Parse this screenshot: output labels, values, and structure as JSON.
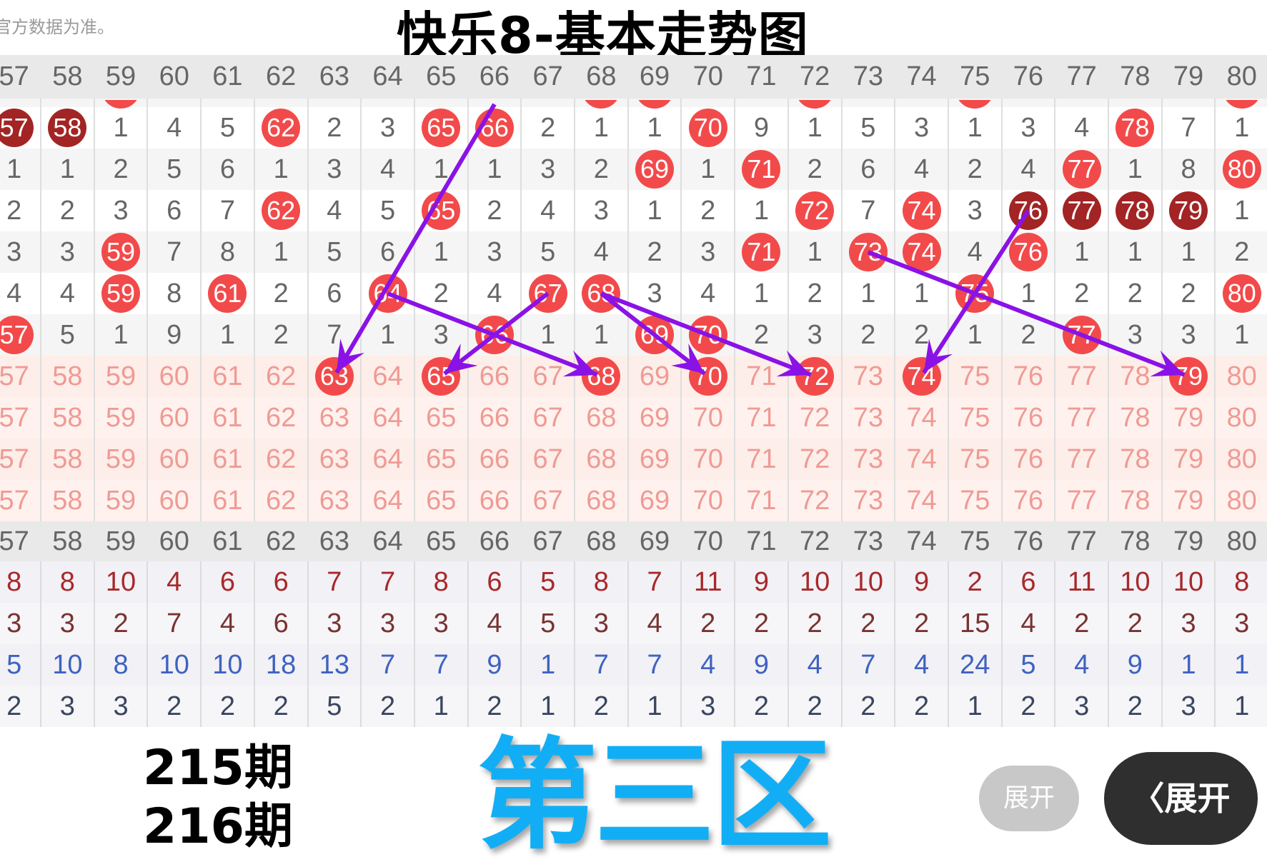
{
  "header_note": "官方数据为准。",
  "title": "快乐8-基本走势图",
  "columns": [
    "57",
    "58",
    "59",
    "60",
    "61",
    "62",
    "63",
    "64",
    "65",
    "66",
    "67",
    "68",
    "69",
    "70",
    "71",
    "72",
    "73",
    "74",
    "75",
    "76",
    "77",
    "78",
    "79",
    "80"
  ],
  "colors": {
    "hit": "#f24a4a",
    "dark_hit": "#a32424",
    "arrow": "#8a12e6",
    "zone_label": "#12aef5",
    "pink_text": "#f09a95"
  },
  "partial_row_hits": [
    "59",
    "68",
    "69",
    "72",
    "75",
    "80"
  ],
  "rows": [
    {
      "cells": [
        "57",
        "58",
        "1",
        "4",
        "5",
        "62",
        "2",
        "3",
        "65",
        "66",
        "2",
        "1",
        "1",
        "70",
        "9",
        "1",
        "5",
        "3",
        "1",
        "3",
        "4",
        "78",
        "7",
        "1"
      ],
      "hits": [
        "62",
        "65",
        "66",
        "70",
        "78"
      ],
      "dark": [
        "57",
        "58"
      ]
    },
    {
      "cells": [
        "1",
        "1",
        "2",
        "5",
        "6",
        "1",
        "3",
        "4",
        "1",
        "1",
        "3",
        "2",
        "69",
        "1",
        "71",
        "2",
        "6",
        "4",
        "2",
        "4",
        "77",
        "1",
        "8",
        "80"
      ],
      "hits": [
        "69",
        "71",
        "77",
        "80"
      ],
      "dark": []
    },
    {
      "cells": [
        "2",
        "2",
        "3",
        "6",
        "7",
        "62",
        "4",
        "5",
        "65",
        "2",
        "4",
        "3",
        "1",
        "2",
        "1",
        "72",
        "7",
        "74",
        "3",
        "76",
        "77",
        "78",
        "79",
        "1"
      ],
      "hits": [
        "62",
        "65",
        "72",
        "74"
      ],
      "dark": [
        "76",
        "77",
        "78",
        "79"
      ]
    },
    {
      "cells": [
        "3",
        "3",
        "59",
        "7",
        "8",
        "1",
        "5",
        "6",
        "1",
        "3",
        "5",
        "4",
        "2",
        "3",
        "71",
        "1",
        "73",
        "74",
        "4",
        "76",
        "1",
        "1",
        "1",
        "2"
      ],
      "hits": [
        "59",
        "71",
        "73",
        "74",
        "76"
      ],
      "dark": []
    },
    {
      "cells": [
        "4",
        "4",
        "59",
        "8",
        "61",
        "2",
        "6",
        "64",
        "2",
        "4",
        "67",
        "68",
        "3",
        "4",
        "1",
        "2",
        "1",
        "1",
        "75",
        "1",
        "2",
        "2",
        "2",
        "80"
      ],
      "hits": [
        "59",
        "61",
        "64",
        "67",
        "68",
        "75",
        "80"
      ],
      "dark": []
    },
    {
      "cells": [
        "57",
        "5",
        "1",
        "9",
        "1",
        "2",
        "7",
        "1",
        "3",
        "66",
        "1",
        "1",
        "69",
        "70",
        "2",
        "3",
        "2",
        "2",
        "1",
        "2",
        "77",
        "3",
        "3",
        "1"
      ],
      "hits": [
        "57",
        "66",
        "69",
        "70",
        "77"
      ],
      "dark": []
    },
    {
      "cells": [
        "57",
        "58",
        "59",
        "60",
        "61",
        "62",
        "63",
        "64",
        "65",
        "66",
        "67",
        "68",
        "69",
        "70",
        "71",
        "72",
        "73",
        "74",
        "75",
        "76",
        "77",
        "78",
        "79",
        "80"
      ],
      "hits": [
        "63",
        "65",
        "68",
        "70",
        "72",
        "74",
        "79"
      ],
      "dark": [],
      "pink": true
    },
    {
      "cells": [
        "57",
        "58",
        "59",
        "60",
        "61",
        "62",
        "63",
        "64",
        "65",
        "66",
        "67",
        "68",
        "69",
        "70",
        "71",
        "72",
        "73",
        "74",
        "75",
        "76",
        "77",
        "78",
        "79",
        "80"
      ],
      "hits": [],
      "dark": [],
      "pink": true
    },
    {
      "cells": [
        "57",
        "58",
        "59",
        "60",
        "61",
        "62",
        "63",
        "64",
        "65",
        "66",
        "67",
        "68",
        "69",
        "70",
        "71",
        "72",
        "73",
        "74",
        "75",
        "76",
        "77",
        "78",
        "79",
        "80"
      ],
      "hits": [],
      "dark": [],
      "pink": true
    },
    {
      "cells": [
        "57",
        "58",
        "59",
        "60",
        "61",
        "62",
        "63",
        "64",
        "65",
        "66",
        "67",
        "68",
        "69",
        "70",
        "71",
        "72",
        "73",
        "74",
        "75",
        "76",
        "77",
        "78",
        "79",
        "80"
      ],
      "hits": [],
      "dark": [],
      "pink": true
    }
  ],
  "stats": [
    {
      "color": "#a8282a",
      "cells": [
        "8",
        "8",
        "10",
        "4",
        "6",
        "6",
        "7",
        "7",
        "8",
        "6",
        "5",
        "8",
        "7",
        "11",
        "9",
        "10",
        "10",
        "9",
        "2",
        "6",
        "11",
        "10",
        "10",
        "8"
      ]
    },
    {
      "color": "#7a3232",
      "cells": [
        "3",
        "3",
        "2",
        "7",
        "4",
        "6",
        "3",
        "3",
        "3",
        "4",
        "5",
        "3",
        "4",
        "2",
        "2",
        "2",
        "2",
        "2",
        "15",
        "4",
        "2",
        "2",
        "3",
        "3"
      ]
    },
    {
      "color": "#3f62c0",
      "cells": [
        "5",
        "10",
        "8",
        "10",
        "10",
        "18",
        "13",
        "7",
        "7",
        "9",
        "1",
        "7",
        "7",
        "4",
        "9",
        "4",
        "7",
        "4",
        "24",
        "5",
        "4",
        "9",
        "1",
        "1"
      ]
    },
    {
      "color": "#3a4560",
      "cells": [
        "2",
        "3",
        "3",
        "2",
        "2",
        "2",
        "5",
        "2",
        "1",
        "2",
        "1",
        "2",
        "1",
        "3",
        "2",
        "2",
        "2",
        "2",
        "1",
        "2",
        "3",
        "2",
        "3",
        "1"
      ]
    }
  ],
  "annotations": {
    "issue_215": "215期",
    "issue_216": "216期",
    "zone": "第三区"
  },
  "buttons": {
    "expand_small": "展开",
    "expand_main": "〈展开"
  },
  "arrows": [
    {
      "from": [
        "66",
        "top"
      ],
      "to": [
        "63",
        "216期"
      ]
    },
    {
      "from": [
        "64",
        "215期-1"
      ],
      "to": [
        "68",
        "216期"
      ]
    },
    {
      "from": [
        "67",
        "215期-1"
      ],
      "to": [
        "65",
        "216期"
      ]
    },
    {
      "from": [
        "68",
        "215期-1"
      ],
      "to": [
        "70",
        "216期"
      ]
    },
    {
      "from": [
        "68",
        "215期-1"
      ],
      "to": [
        "72",
        "216期"
      ]
    },
    {
      "from": [
        "76",
        "215期-3"
      ],
      "to": [
        "74",
        "216期"
      ]
    },
    {
      "from": [
        "73",
        "215期-2"
      ],
      "to": [
        "79",
        "216期"
      ]
    }
  ]
}
